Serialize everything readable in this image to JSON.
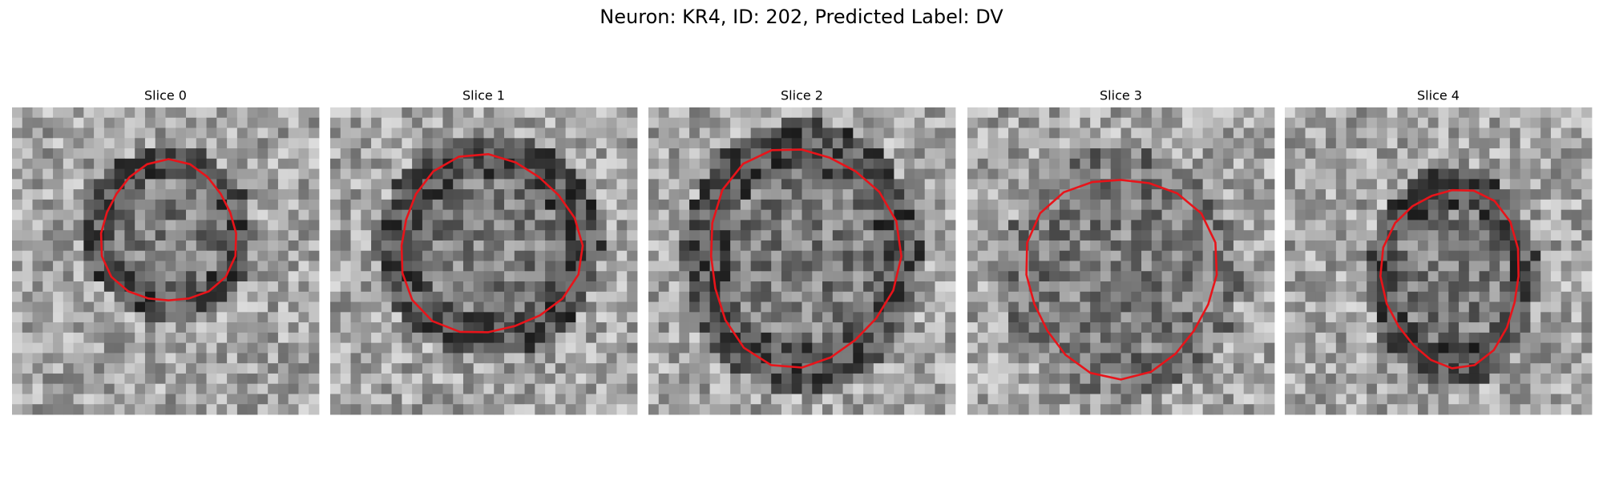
{
  "title": "Neuron: KR4, ID: 202, Predicted Label: DV",
  "panels": [
    {
      "title": "Slice 0"
    },
    {
      "title": "Slice 1"
    },
    {
      "title": "Slice 2"
    },
    {
      "title": "Slice 3"
    },
    {
      "title": "Slice 4"
    }
  ]
}
